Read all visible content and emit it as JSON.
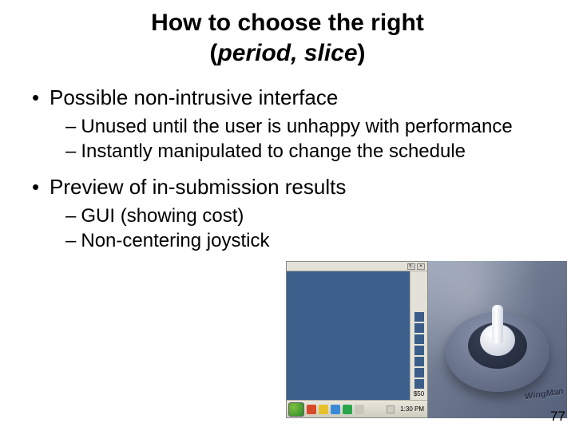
{
  "title": {
    "line1": "How to choose the right",
    "line2_prefix": "(",
    "line2_inner": "period, slice",
    "line2_suffix": ")"
  },
  "bullets": {
    "b1": "Possible non-intrusive interface",
    "b1_sub1": "Unused until the user is unhappy with performance",
    "b1_sub2": "Instantly manipulated to change the schedule",
    "b2": "Preview of in-submission results",
    "b2_sub1": "GUI (showing cost)",
    "b2_sub2": "Non-centering joystick"
  },
  "screenshot": {
    "titlebar_label_y": "Y..",
    "titlebar_label_close": "×",
    "cost_label": "$50",
    "clock": "1:30 PM",
    "side_block_count": 7,
    "taskbar_icons": [
      "#d64a2a",
      "#e6c12a",
      "#3a8ad6",
      "#2aa64a",
      "#c9c7b9"
    ],
    "colors": {
      "panel_blue": "#3b5f8a",
      "chrome": "#e4e2d8",
      "block": "#3a5e89"
    }
  },
  "joystick": {
    "brand": "WingMan",
    "colors": {
      "bg_from": "#9aa4b8",
      "bg_to": "#55607a",
      "base_from": "#8a95ad",
      "base_to": "#4e5870"
    }
  },
  "page_number": "77"
}
